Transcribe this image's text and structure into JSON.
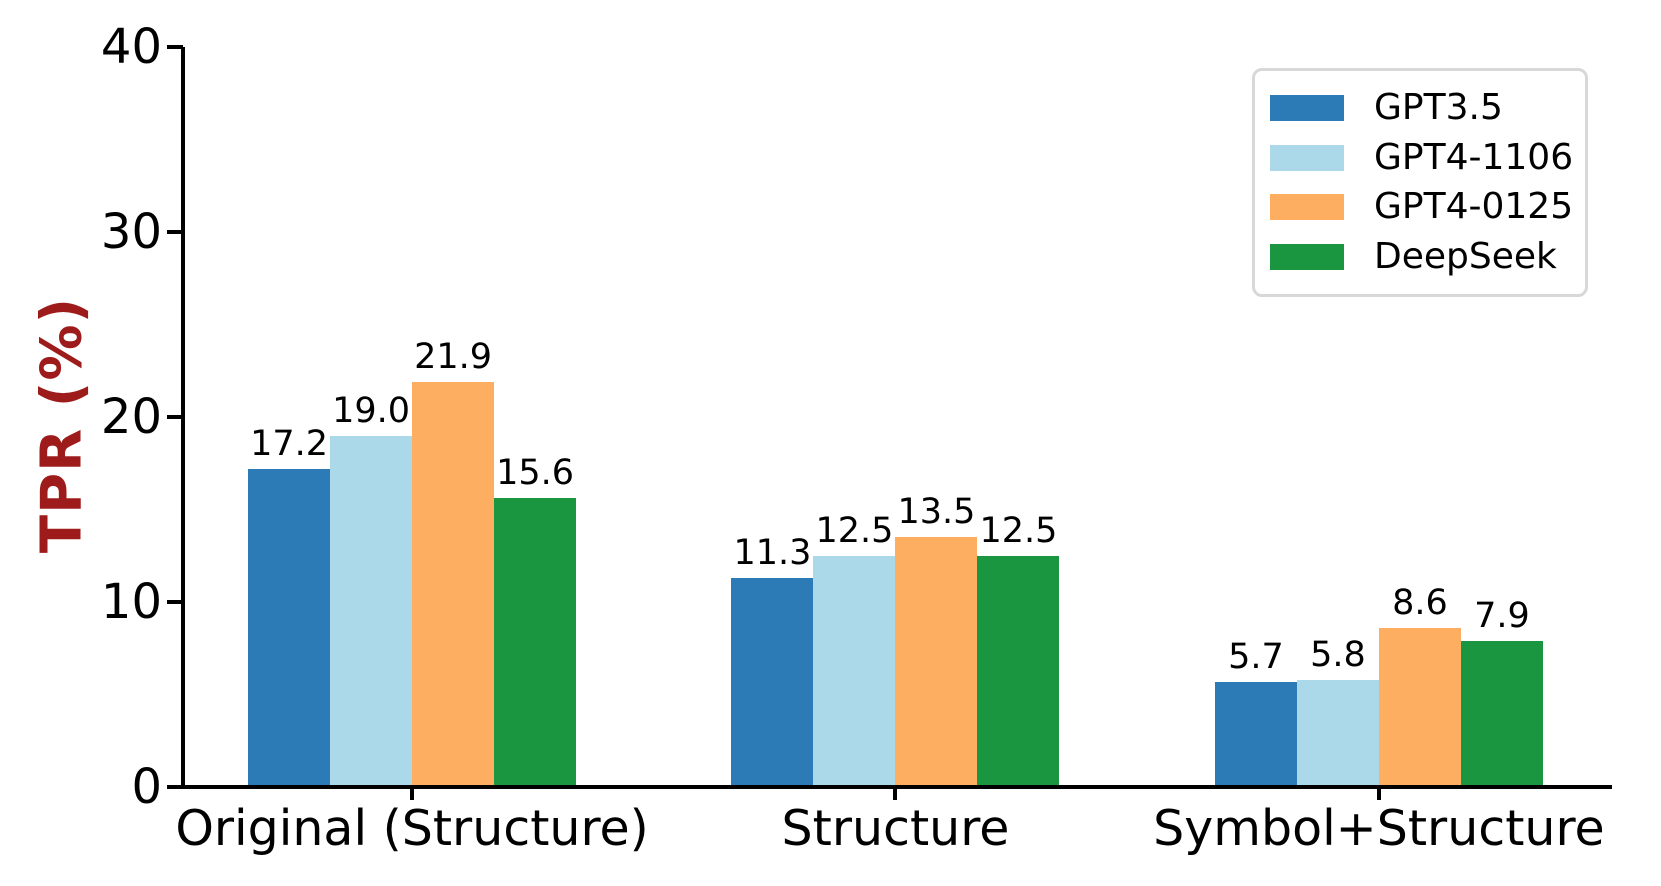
{
  "chart_data": {
    "type": "bar",
    "title": "",
    "ylabel": "TPR (%)",
    "xlabel": "",
    "ylim": [
      0,
      40
    ],
    "yticks": [
      0,
      10,
      20,
      30,
      40
    ],
    "categories": [
      "Original (Structure)",
      "Structure",
      "Symbol+Structure"
    ],
    "series": [
      {
        "name": "GPT3.5",
        "color": "#2c7bb6",
        "values": [
          17.2,
          11.3,
          5.7
        ]
      },
      {
        "name": "GPT4-1106",
        "color": "#abd9e9",
        "values": [
          19.0,
          12.5,
          5.8
        ]
      },
      {
        "name": "GPT4-0125",
        "color": "#fdae61",
        "values": [
          21.9,
          13.5,
          8.6
        ]
      },
      {
        "name": "DeepSeek",
        "color": "#1a9641",
        "values": [
          15.6,
          12.5,
          7.9
        ]
      }
    ],
    "bar_value_labels": {
      "Original (Structure)": [
        "17.2",
        "19.0",
        "21.9",
        "15.6"
      ],
      "Structure": [
        "11.3",
        "12.5",
        "13.5",
        "12.5"
      ],
      "Symbol+Structure": [
        "5.7",
        "5.8",
        "8.6",
        "7.9"
      ]
    },
    "legend_position": "upper-right",
    "grid": false,
    "colors": {
      "axis": "#000000",
      "ylabel_text": "#9e1b1b",
      "legend_border": "#d8d8d8",
      "background": "#ffffff"
    }
  }
}
